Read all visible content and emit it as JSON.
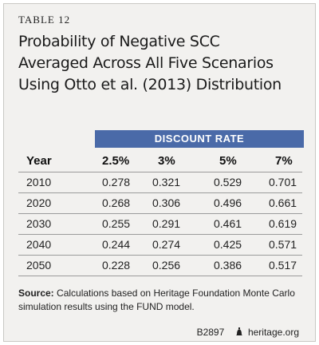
{
  "label": "TABLE 12",
  "title_lines": [
    "Probability of Negative SCC",
    "Averaged Across All Five Scenarios",
    "Using Otto et al. (2013) Distribution"
  ],
  "table": {
    "group_header": "DISCOUNT RATE",
    "columns": [
      "Year",
      "2.5%",
      "3%",
      "5%",
      "7%"
    ],
    "rows": [
      [
        "2010",
        "0.278",
        "0.321",
        "0.529",
        "0.701"
      ],
      [
        "2020",
        "0.268",
        "0.306",
        "0.496",
        "0.661"
      ],
      [
        "2030",
        "0.255",
        "0.291",
        "0.461",
        "0.619"
      ],
      [
        "2040",
        "0.244",
        "0.274",
        "0.425",
        "0.571"
      ],
      [
        "2050",
        "0.228",
        "0.256",
        "0.386",
        "0.517"
      ]
    ]
  },
  "source": {
    "label": "Source:",
    "text": "Calculations based on Heritage Foundation Monte Carlo simulation results using the FUND model."
  },
  "footer": {
    "code": "B2897",
    "site": "heritage.org",
    "icon": "liberty-bell-icon"
  },
  "colors": {
    "header_band": "#4a6aa8",
    "card_background": "#f2f1ef"
  }
}
